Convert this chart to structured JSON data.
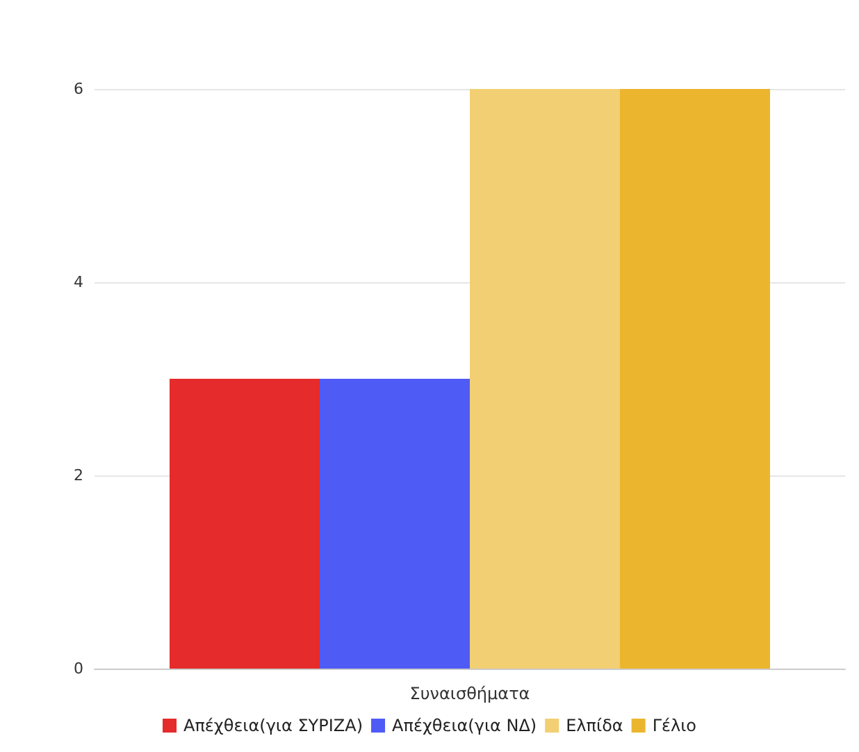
{
  "chart_data": {
    "type": "bar",
    "categories": [
      "Συναισθήματα"
    ],
    "series": [
      {
        "name": "Απέχθεια(για ΣΥΡΙΖΑ)",
        "color": "#e52b2b",
        "values": [
          3
        ]
      },
      {
        "name": "Απέχθεια(για ΝΔ)",
        "color": "#4f5bf5",
        "values": [
          3
        ]
      },
      {
        "name": "Ελπίδα",
        "color": "#f2cf72",
        "values": [
          6
        ]
      },
      {
        "name": "Γέλιο",
        "color": "#ebb62e",
        "values": [
          6
        ]
      }
    ],
    "ylim": [
      0,
      6
    ],
    "yticks": [
      0,
      2,
      4,
      6
    ],
    "grid": "y",
    "legend": "bottom"
  }
}
